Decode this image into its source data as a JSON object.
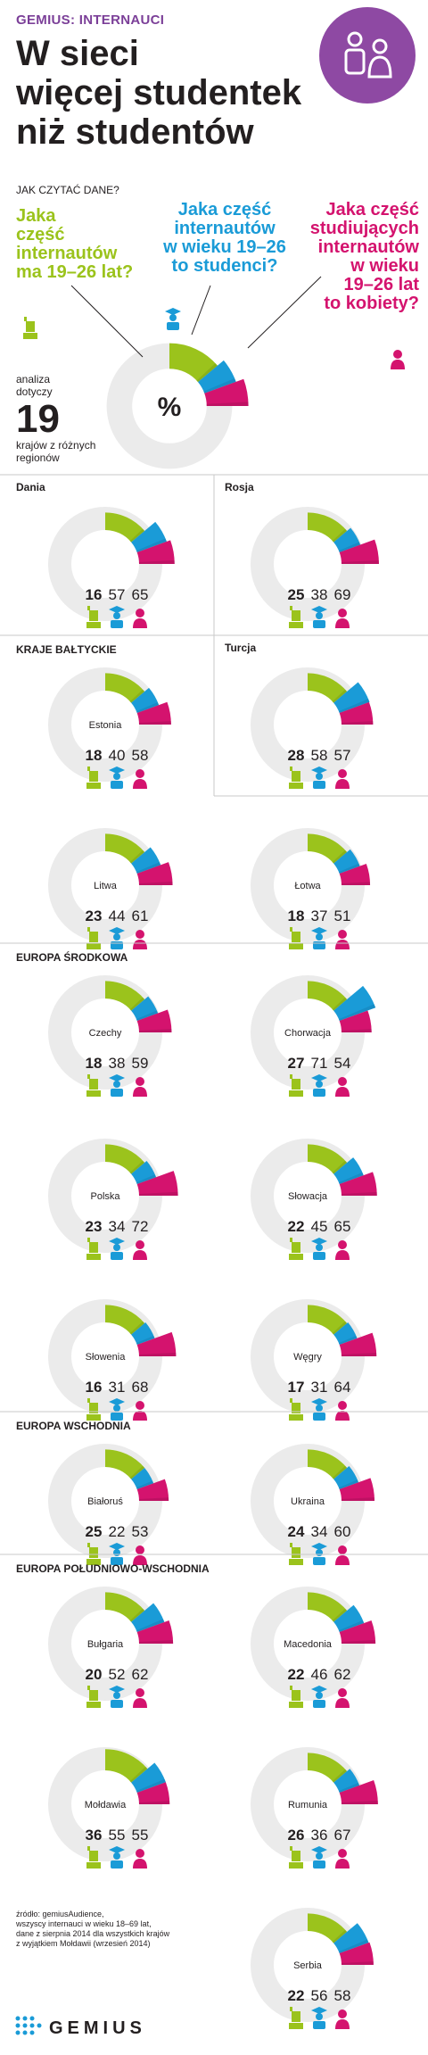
{
  "header": {
    "brand": "GEMIUS: INTERNAUCI",
    "title_lines": [
      "W sieci",
      "więcej studentek",
      "niż studentów"
    ],
    "logo": "people-icon"
  },
  "legend": {
    "how_to_read": "JAK CZYTAĆ DANE?",
    "q1_lines": [
      "Jaka",
      "część",
      "internautów",
      "ma 19–26 lat?"
    ],
    "q2_lines": [
      "Jaka część",
      "internautów",
      "w wieku 19–26",
      "to studenci?"
    ],
    "q3_lines": [
      "Jaka część",
      "studiujących",
      "internautów",
      "w wieku",
      "19–26 lat",
      "to kobiety?"
    ],
    "analysis_lines": [
      "analiza",
      "dotyczy"
    ],
    "analysis_count": "19",
    "analysis_after_lines": [
      "krajów z różnych",
      "regionów"
    ],
    "percent_symbol": "%"
  },
  "colors": {
    "age": "#9bc31c",
    "students": "#1a9bd7",
    "women": "#d4136e",
    "ring": "#ebebeb",
    "accent": "#8e49a3"
  },
  "icons": {
    "age": "person-icon",
    "students": "graduate-icon",
    "women": "woman-icon"
  },
  "sections": [
    {
      "label": "",
      "top": 0
    },
    {
      "label": "KRAJE BAŁTYCKIE"
    },
    {
      "label": "EUROPA ŚRODKOWA"
    },
    {
      "label": "EUROPA WSCHODNIA"
    },
    {
      "label": "EUROPA POŁUDNIOWO-WSCHODNIA"
    }
  ],
  "chart_data": {
    "type": "radial-bar",
    "series": [
      {
        "name": "Jaka część internautów ma 19–26 lat?",
        "unit": "%"
      },
      {
        "name": "Jaka część internautów w wieku 19–26 to studenci?",
        "unit": "%"
      },
      {
        "name": "Jaka część studiujących internautów w wieku 19–26 lat to kobiety?",
        "unit": "%"
      }
    ],
    "countries": [
      {
        "name": "Dania",
        "section": "",
        "label_pos": "corner",
        "values": [
          16,
          57,
          65
        ]
      },
      {
        "name": "Rosja",
        "section": "",
        "label_pos": "corner",
        "values": [
          25,
          38,
          69
        ]
      },
      {
        "name": "Estonia",
        "section": "KRAJE BAŁTYCKIE",
        "label_pos": "center",
        "values": [
          18,
          40,
          58
        ]
      },
      {
        "name": "Turcja",
        "section": "KRAJE BAŁTYCKIE",
        "label_pos": "corner",
        "values": [
          28,
          58,
          57
        ]
      },
      {
        "name": "Litwa",
        "section": "KRAJE BAŁTYCKIE",
        "label_pos": "center",
        "values": [
          23,
          44,
          61
        ]
      },
      {
        "name": "Łotwa",
        "section": "KRAJE BAŁTYCKIE",
        "label_pos": "center",
        "values": [
          18,
          37,
          51
        ]
      },
      {
        "name": "Czechy",
        "section": "EUROPA ŚRODKOWA",
        "label_pos": "center",
        "values": [
          18,
          38,
          59
        ]
      },
      {
        "name": "Chorwacja",
        "section": "EUROPA ŚRODKOWA",
        "label_pos": "center",
        "values": [
          27,
          71,
          54
        ]
      },
      {
        "name": "Polska",
        "section": "EUROPA ŚRODKOWA",
        "label_pos": "center",
        "values": [
          23,
          34,
          72
        ]
      },
      {
        "name": "Słowacja",
        "section": "EUROPA ŚRODKOWA",
        "label_pos": "center",
        "values": [
          22,
          45,
          65
        ]
      },
      {
        "name": "Słowenia",
        "section": "EUROPA ŚRODKOWA",
        "label_pos": "center",
        "values": [
          16,
          31,
          68
        ]
      },
      {
        "name": "Węgry",
        "section": "EUROPA ŚRODKOWA",
        "label_pos": "center",
        "values": [
          17,
          31,
          64
        ]
      },
      {
        "name": "Białoruś",
        "section": "EUROPA WSCHODNIA",
        "label_pos": "center",
        "values": [
          25,
          22,
          53
        ]
      },
      {
        "name": "Ukraina",
        "section": "EUROPA WSCHODNIA",
        "label_pos": "center",
        "values": [
          24,
          34,
          60
        ]
      },
      {
        "name": "Bułgaria",
        "section": "EUROPA POŁUDNIOWO-WSCHODNIA",
        "label_pos": "center",
        "values": [
          20,
          52,
          62
        ]
      },
      {
        "name": "Macedonia",
        "section": "EUROPA POŁUDNIOWO-WSCHODNIA",
        "label_pos": "center",
        "values": [
          22,
          46,
          62
        ]
      },
      {
        "name": "Mołdawia",
        "section": "EUROPA POŁUDNIOWO-WSCHODNIA",
        "label_pos": "center",
        "values": [
          36,
          55,
          55
        ]
      },
      {
        "name": "Rumunia",
        "section": "EUROPA POŁUDNIOWO-WSCHODNIA",
        "label_pos": "center",
        "values": [
          26,
          36,
          67
        ]
      },
      {
        "name": "Serbia",
        "section": "EUROPA POŁUDNIOWO-WSCHODNIA",
        "label_pos": "center",
        "values": [
          22,
          56,
          58
        ]
      }
    ]
  },
  "footer": {
    "source_lines": [
      "źródło: gemiusAudience,",
      "wszyscy internauci w wieku 18–69 lat,",
      "dane z sierpnia 2014 dla wszystkich krajów",
      "z wyjątkiem Mołdawii (wrzesień 2014)"
    ],
    "brand": "GEMIUS",
    "logo": "dots-logo-icon"
  }
}
